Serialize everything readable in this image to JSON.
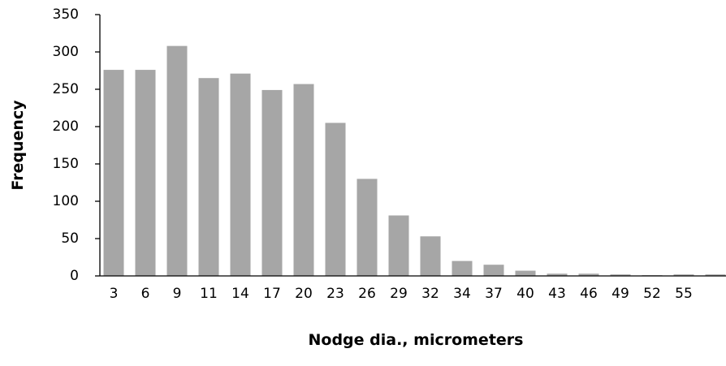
{
  "chart_data": {
    "type": "bar",
    "title": "",
    "xlabel": "Nodge dia., micrometers",
    "ylabel": "Frequency",
    "ylim": [
      0,
      350
    ],
    "y_ticks": [
      0,
      50,
      100,
      150,
      200,
      250,
      300,
      350
    ],
    "grid": false,
    "legend": "none",
    "categories": [
      "3",
      "6",
      "9",
      "11",
      "14",
      "17",
      "20",
      "23",
      "26",
      "29",
      "32",
      "34",
      "37",
      "40",
      "43",
      "46",
      "49",
      "52",
      "55",
      ""
    ],
    "values": [
      276,
      276,
      308,
      265,
      271,
      249,
      257,
      205,
      130,
      81,
      53,
      20,
      15,
      7,
      3,
      3,
      2,
      1,
      2,
      2
    ],
    "bar_color": "#a6a6a6",
    "axis_color": "#000000"
  }
}
